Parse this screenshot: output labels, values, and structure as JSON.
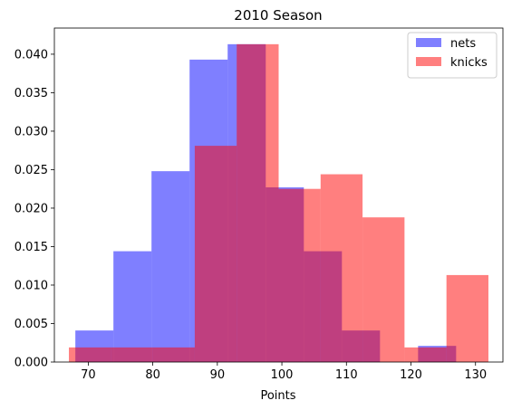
{
  "chart_data": {
    "type": "bar",
    "title": "2010 Season",
    "xlabel": "Points",
    "ylabel": "",
    "xlim": [
      64.75,
      134.25
    ],
    "ylim": [
      0,
      0.0434
    ],
    "xticks": [
      70,
      80,
      90,
      100,
      110,
      120,
      130
    ],
    "yticks": [
      0.0,
      0.005,
      0.01,
      0.015,
      0.02,
      0.025,
      0.03,
      0.035,
      0.04
    ],
    "ytick_labels": [
      "0.000",
      "0.005",
      "0.010",
      "0.015",
      "0.020",
      "0.025",
      "0.030",
      "0.035",
      "0.040"
    ],
    "grid": false,
    "legend": "top-right",
    "series": [
      {
        "name": "nets",
        "color": "#0000ff",
        "alpha": 0.5,
        "bin_edges": [
          68,
          73.9,
          79.8,
          85.7,
          91.6,
          97.5,
          103.4,
          109.3,
          115.2,
          121.1,
          127
        ],
        "values": [
          0.0041,
          0.0144,
          0.0248,
          0.0393,
          0.0413,
          0.0227,
          0.0144,
          0.0041,
          0.0,
          0.0021
        ]
      },
      {
        "name": "knicks",
        "color": "#ff0000",
        "alpha": 0.5,
        "bin_edges": [
          67,
          73.5,
          80,
          86.5,
          93,
          99.5,
          106,
          112.5,
          119,
          125.5,
          132
        ],
        "values": [
          0.0019,
          0.0019,
          0.0019,
          0.0281,
          0.0413,
          0.0225,
          0.0244,
          0.0188,
          0.0019,
          0.0113
        ]
      }
    ]
  }
}
